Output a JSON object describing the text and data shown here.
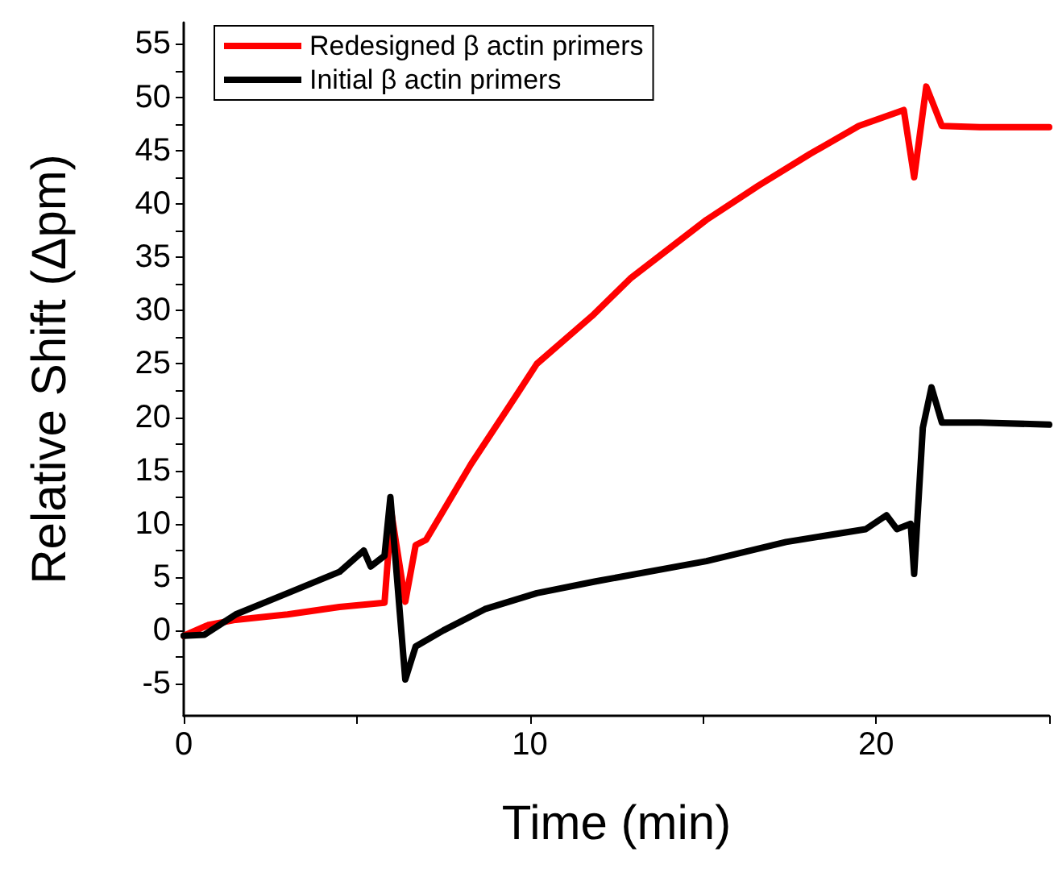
{
  "chart_data": {
    "type": "line",
    "xlabel": "Time (min)",
    "ylabel": "Relative Shift (Δpm)",
    "xlim": [
      0,
      25
    ],
    "ylim": [
      -8,
      57
    ],
    "xticks": [
      0,
      {
        "value": 5,
        "label": null
      },
      10,
      {
        "value": 15,
        "label": null
      },
      20,
      {
        "value": 25,
        "label": null
      }
    ],
    "yticks": [
      -5,
      {
        "value": -2.5,
        "label": null
      },
      0,
      {
        "value": 2.5,
        "label": null
      },
      5,
      {
        "value": 7.5,
        "label": null
      },
      10,
      {
        "value": 12.5,
        "label": null
      },
      15,
      {
        "value": 17.5,
        "label": null
      },
      20,
      {
        "value": 22.5,
        "label": null
      },
      25,
      {
        "value": 27.5,
        "label": null
      },
      30,
      {
        "value": 32.5,
        "label": null
      },
      35,
      {
        "value": 37.5,
        "label": null
      },
      40,
      {
        "value": 42.5,
        "label": null
      },
      45,
      {
        "value": 47.5,
        "label": null
      },
      50,
      {
        "value": 52.5,
        "label": null
      },
      55
    ],
    "grid": false,
    "legend": "top left",
    "marker": "none",
    "line_style": "solid",
    "series": [
      {
        "name": "Redesigned β actin primers",
        "color": "#ff0000",
        "x": [
          0,
          0.7,
          1.5,
          3,
          4.5,
          5.8,
          6.0,
          6.4,
          6.7,
          7.0,
          8.3,
          9.6,
          10.2,
          11.8,
          12.9,
          15.1,
          16.6,
          18.1,
          19.5,
          20.8,
          21.1,
          21.45,
          21.9,
          23,
          25
        ],
        "values": [
          -0.5,
          0.5,
          1,
          1.5,
          2.2,
          2.6,
          11,
          2.7,
          8,
          8.5,
          15.6,
          22,
          25,
          29.5,
          33,
          38.5,
          41.7,
          44.7,
          47.3,
          48.8,
          42.5,
          51,
          47.3,
          47.2,
          47.2
        ]
      },
      {
        "name": "Initial β actin primers",
        "color": "#000000",
        "x": [
          0,
          0.6,
          1.5,
          3,
          4.5,
          5.2,
          5.4,
          5.8,
          5.97,
          6.4,
          6.7,
          7.5,
          8.7,
          10.2,
          11.9,
          15.1,
          17.4,
          19.7,
          20.3,
          20.6,
          21.0,
          21.1,
          21.35,
          21.6,
          21.9,
          23,
          25
        ],
        "values": [
          -0.5,
          -0.4,
          1.5,
          3.5,
          5.5,
          7.5,
          6,
          7,
          12.5,
          -4.6,
          -1.5,
          0,
          2,
          3.5,
          4.6,
          6.5,
          8.3,
          9.5,
          10.8,
          9.5,
          10,
          5.3,
          19,
          22.8,
          19.5,
          19.5,
          19.3
        ]
      }
    ]
  }
}
